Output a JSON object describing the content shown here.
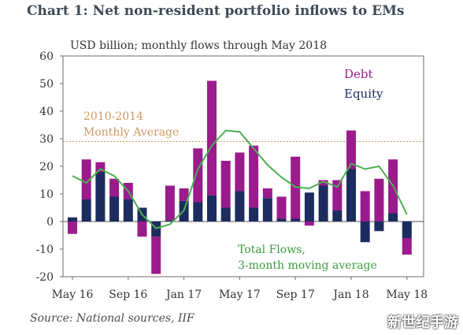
{
  "title": "Chart 1: Net non-resident portfolio inflows to EMs",
  "source": "Source: National sources, IIF",
  "watermark": "新世纪手游",
  "chart_data": {
    "type": "bar",
    "subtitle": "USD billion; monthly flows through May 2018",
    "stacked": true,
    "ylim": [
      -20,
      60
    ],
    "yticks": [
      -20,
      -10,
      0,
      10,
      20,
      30,
      40,
      50,
      60
    ],
    "x_tick_labels": [
      "May 16",
      "Sep 16",
      "Jan 17",
      "May 17",
      "Sep 17",
      "Jan 18",
      "May 18"
    ],
    "categories": [
      "May 16",
      "Jun 16",
      "Jul 16",
      "Aug 16",
      "Sep 16",
      "Oct 16",
      "Nov 16",
      "Dec 16",
      "Jan 17",
      "Feb 17",
      "Mar 17",
      "Apr 17",
      "May 17",
      "Jun 17",
      "Jul 17",
      "Aug 17",
      "Sep 17",
      "Oct 17",
      "Nov 17",
      "Dec 17",
      "Jan 18",
      "Feb 18",
      "Mar 18",
      "Apr 18",
      "May 18"
    ],
    "series": [
      {
        "name": "Debt",
        "color": "#9b1b8c",
        "values": [
          -4.5,
          14.5,
          3.5,
          6.5,
          6,
          -5.5,
          -13.5,
          12.5,
          4.5,
          19.5,
          41.5,
          17,
          14,
          22.5,
          3.5,
          8,
          22.5,
          -1.5,
          2,
          11,
          14,
          11,
          15.5,
          19.5,
          -6
        ]
      },
      {
        "name": "Equity",
        "color": "#1c2c5e",
        "values": [
          1.5,
          8,
          18,
          9,
          8,
          5,
          -5.5,
          0.5,
          7.5,
          7,
          9.5,
          5,
          11,
          5,
          8.5,
          1,
          1,
          10.5,
          13,
          4,
          19,
          -7.5,
          -3.5,
          3,
          -6
        ]
      }
    ],
    "line": {
      "name": "Total Flows, 3-month moving average",
      "color": "#4caf50",
      "values": [
        16.5,
        14,
        19,
        16.5,
        11,
        2.5,
        -2.5,
        -1,
        4,
        19,
        27.5,
        33,
        32.5,
        26.5,
        20.5,
        16,
        12.5,
        12,
        14.5,
        12.5,
        21,
        19,
        20,
        13,
        2.5
      ]
    },
    "reference": {
      "label_line1": "2010-2014",
      "label_line2": "Monthly Average",
      "value": 29,
      "color": "#cd9960"
    },
    "annotation": {
      "line1": "Total Flows,",
      "line2": "3-month moving average"
    },
    "legend": [
      "Debt",
      "Equity"
    ],
    "legend_position": "top-right"
  }
}
